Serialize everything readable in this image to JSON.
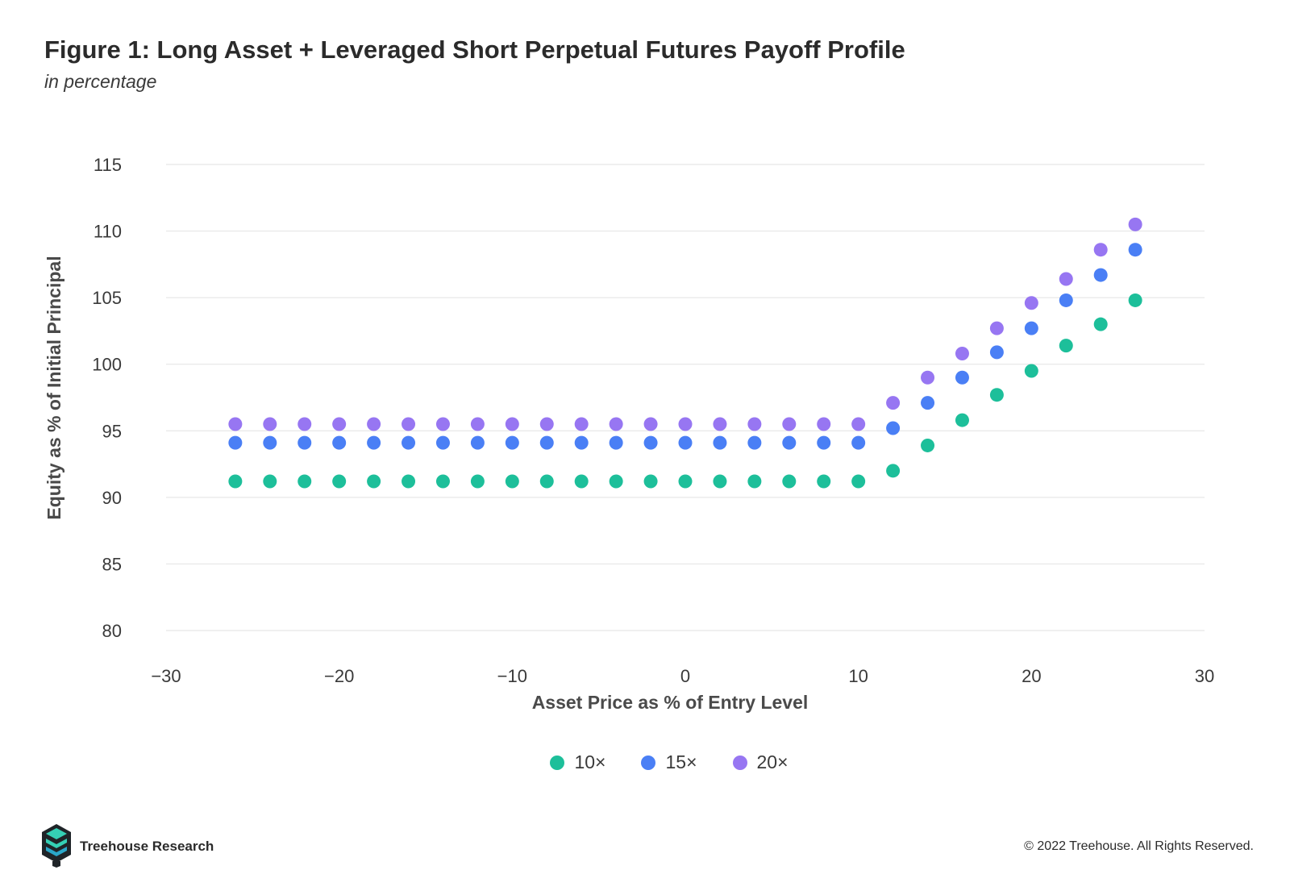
{
  "header": {
    "title": "Figure 1: Long Asset + Leveraged Short Perpetual Futures Payoff Profile",
    "subtitle": "in percentage"
  },
  "footer": {
    "brand": "Treehouse Research",
    "copyright": "© 2022 Treehouse. All Rights Reserved.",
    "logo_icon": "treehouse-logo-icon"
  },
  "chart_data": {
    "type": "scatter",
    "title": "Figure 1: Long Asset + Leveraged Short Perpetual Futures Payoff Profile",
    "subtitle": "in percentage",
    "xlabel": "Asset Price as % of Entry Level",
    "ylabel": "Equity as % of Initial Principal",
    "xlim": [
      -30,
      30
    ],
    "ylim": [
      80,
      115
    ],
    "xticks": [
      -30,
      -20,
      -10,
      0,
      10,
      20,
      30
    ],
    "xtick_labels": [
      "−30",
      "−20",
      "−10",
      "0",
      "10",
      "20",
      "30"
    ],
    "yticks": [
      80,
      85,
      90,
      95,
      100,
      105,
      110,
      115
    ],
    "ytick_labels": [
      "80",
      "85",
      "90",
      "95",
      "100",
      "105",
      "110",
      "115"
    ],
    "grid": "horizontal",
    "legend_position": "bottom-center",
    "x": [
      -26,
      -24,
      -22,
      -20,
      -18,
      -16,
      -14,
      -12,
      -10,
      -8,
      -6,
      -4,
      -2,
      0,
      2,
      4,
      6,
      8,
      10,
      12,
      14,
      16,
      18,
      20,
      22,
      24,
      26
    ],
    "series": [
      {
        "name": "10×",
        "color": "#1dbf9a",
        "values": [
          91.2,
          91.2,
          91.2,
          91.2,
          91.2,
          91.2,
          91.2,
          91.2,
          91.2,
          91.2,
          91.2,
          91.2,
          91.2,
          91.2,
          91.2,
          91.2,
          91.2,
          91.2,
          91.2,
          92.0,
          93.9,
          95.8,
          97.7,
          99.5,
          101.4,
          103.0,
          104.8
        ]
      },
      {
        "name": "15×",
        "color": "#4a7ff5",
        "values": [
          94.1,
          94.1,
          94.1,
          94.1,
          94.1,
          94.1,
          94.1,
          94.1,
          94.1,
          94.1,
          94.1,
          94.1,
          94.1,
          94.1,
          94.1,
          94.1,
          94.1,
          94.1,
          94.1,
          95.2,
          97.1,
          99.0,
          100.9,
          102.7,
          104.8,
          106.7,
          108.6
        ]
      },
      {
        "name": "20×",
        "color": "#9776f2",
        "values": [
          95.5,
          95.5,
          95.5,
          95.5,
          95.5,
          95.5,
          95.5,
          95.5,
          95.5,
          95.5,
          95.5,
          95.5,
          95.5,
          95.5,
          95.5,
          95.5,
          95.5,
          95.5,
          95.5,
          97.1,
          99.0,
          100.8,
          102.7,
          104.6,
          106.4,
          108.6,
          110.5
        ]
      }
    ]
  }
}
